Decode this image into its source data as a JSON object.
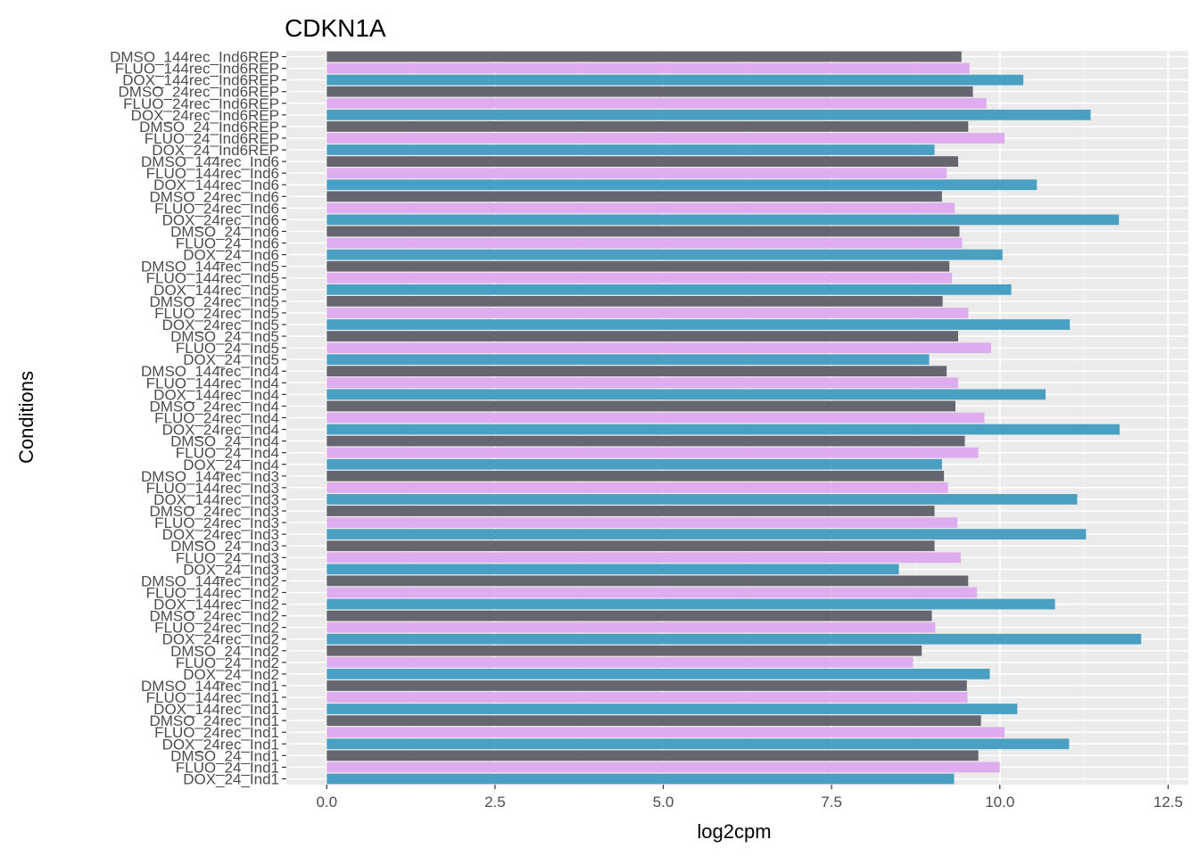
{
  "chart_data": {
    "type": "bar",
    "orientation": "horizontal",
    "title": "CDKN1A",
    "xlabel": "log2cpm",
    "ylabel": "Conditions",
    "xlim": [
      -0.6,
      12.8
    ],
    "xticks": [
      0.0,
      2.5,
      5.0,
      7.5,
      10.0,
      12.5
    ],
    "xtick_labels": [
      "0.0",
      "2.5",
      "5.0",
      "7.5",
      "10.0",
      "12.5"
    ],
    "grid": true,
    "legend": "none",
    "treatment_colors": {
      "DMSO": "#666670",
      "FLUO": "#dfacef",
      "DOX": "#4aa0c2"
    },
    "categories": [
      "DMSO_144rec_Ind6REP",
      "FLUO_144rec_Ind6REP",
      "DOX_144rec_Ind6REP",
      "DMSO_24rec_Ind6REP",
      "FLUO_24rec_Ind6REP",
      "DOX_24rec_Ind6REP",
      "DMSO_24_Ind6REP",
      "FLUO_24_Ind6REP",
      "DOX_24_Ind6REP",
      "DMSO_144rec_Ind6",
      "FLUO_144rec_Ind6",
      "DOX_144rec_Ind6",
      "DMSO_24rec_Ind6",
      "FLUO_24rec_Ind6",
      "DOX_24rec_Ind6",
      "DMSO_24_Ind6",
      "FLUO_24_Ind6",
      "DOX_24_Ind6",
      "DMSO_144rec_Ind5",
      "FLUO_144rec_Ind5",
      "DOX_144rec_Ind5",
      "DMSO_24rec_Ind5",
      "FLUO_24rec_Ind5",
      "DOX_24rec_Ind5",
      "DMSO_24_Ind5",
      "FLUO_24_Ind5",
      "DOX_24_Ind5",
      "DMSO_144rec_Ind4",
      "FLUO_144rec_Ind4",
      "DOX_144rec_Ind4",
      "DMSO_24rec_Ind4",
      "FLUO_24rec_Ind4",
      "DOX_24rec_Ind4",
      "DMSO_24_Ind4",
      "FLUO_24_Ind4",
      "DOX_24_Ind4",
      "DMSO_144rec_Ind3",
      "FLUO_144rec_Ind3",
      "DOX_144rec_Ind3",
      "DMSO_24rec_Ind3",
      "FLUO_24rec_Ind3",
      "DOX_24rec_Ind3",
      "DMSO_24_Ind3",
      "FLUO_24_Ind3",
      "DOX_24_Ind3",
      "DMSO_144rec_Ind2",
      "FLUO_144rec_Ind2",
      "DOX_144rec_Ind2",
      "DMSO_24rec_Ind2",
      "FLUO_24rec_Ind2",
      "DOX_24rec_Ind2",
      "DMSO_24_Ind2",
      "FLUO_24_Ind2",
      "DOX_24_Ind2",
      "DMSO_144rec_Ind1",
      "FLUO_144rec_Ind1",
      "DOX_144rec_Ind1",
      "DMSO_24rec_Ind1",
      "FLUO_24rec_Ind1",
      "DOX_24rec_Ind1",
      "DMSO_24_Ind1",
      "FLUO_24_Ind1",
      "DOX_24_Ind1"
    ],
    "values": [
      9.43,
      9.55,
      10.35,
      9.6,
      9.8,
      11.35,
      9.53,
      10.07,
      9.03,
      9.38,
      9.21,
      10.55,
      9.14,
      9.33,
      11.77,
      9.4,
      9.44,
      10.04,
      9.25,
      9.29,
      10.17,
      9.15,
      9.53,
      11.04,
      9.38,
      9.87,
      8.95,
      9.21,
      9.38,
      10.68,
      9.34,
      9.77,
      11.78,
      9.48,
      9.68,
      9.14,
      9.17,
      9.23,
      11.15,
      9.03,
      9.37,
      11.28,
      9.03,
      9.42,
      8.5,
      9.53,
      9.66,
      10.82,
      8.99,
      9.04,
      12.1,
      8.84,
      8.71,
      9.85,
      9.51,
      9.52,
      10.26,
      9.72,
      10.07,
      11.03,
      9.68,
      10.0,
      9.32
    ]
  }
}
